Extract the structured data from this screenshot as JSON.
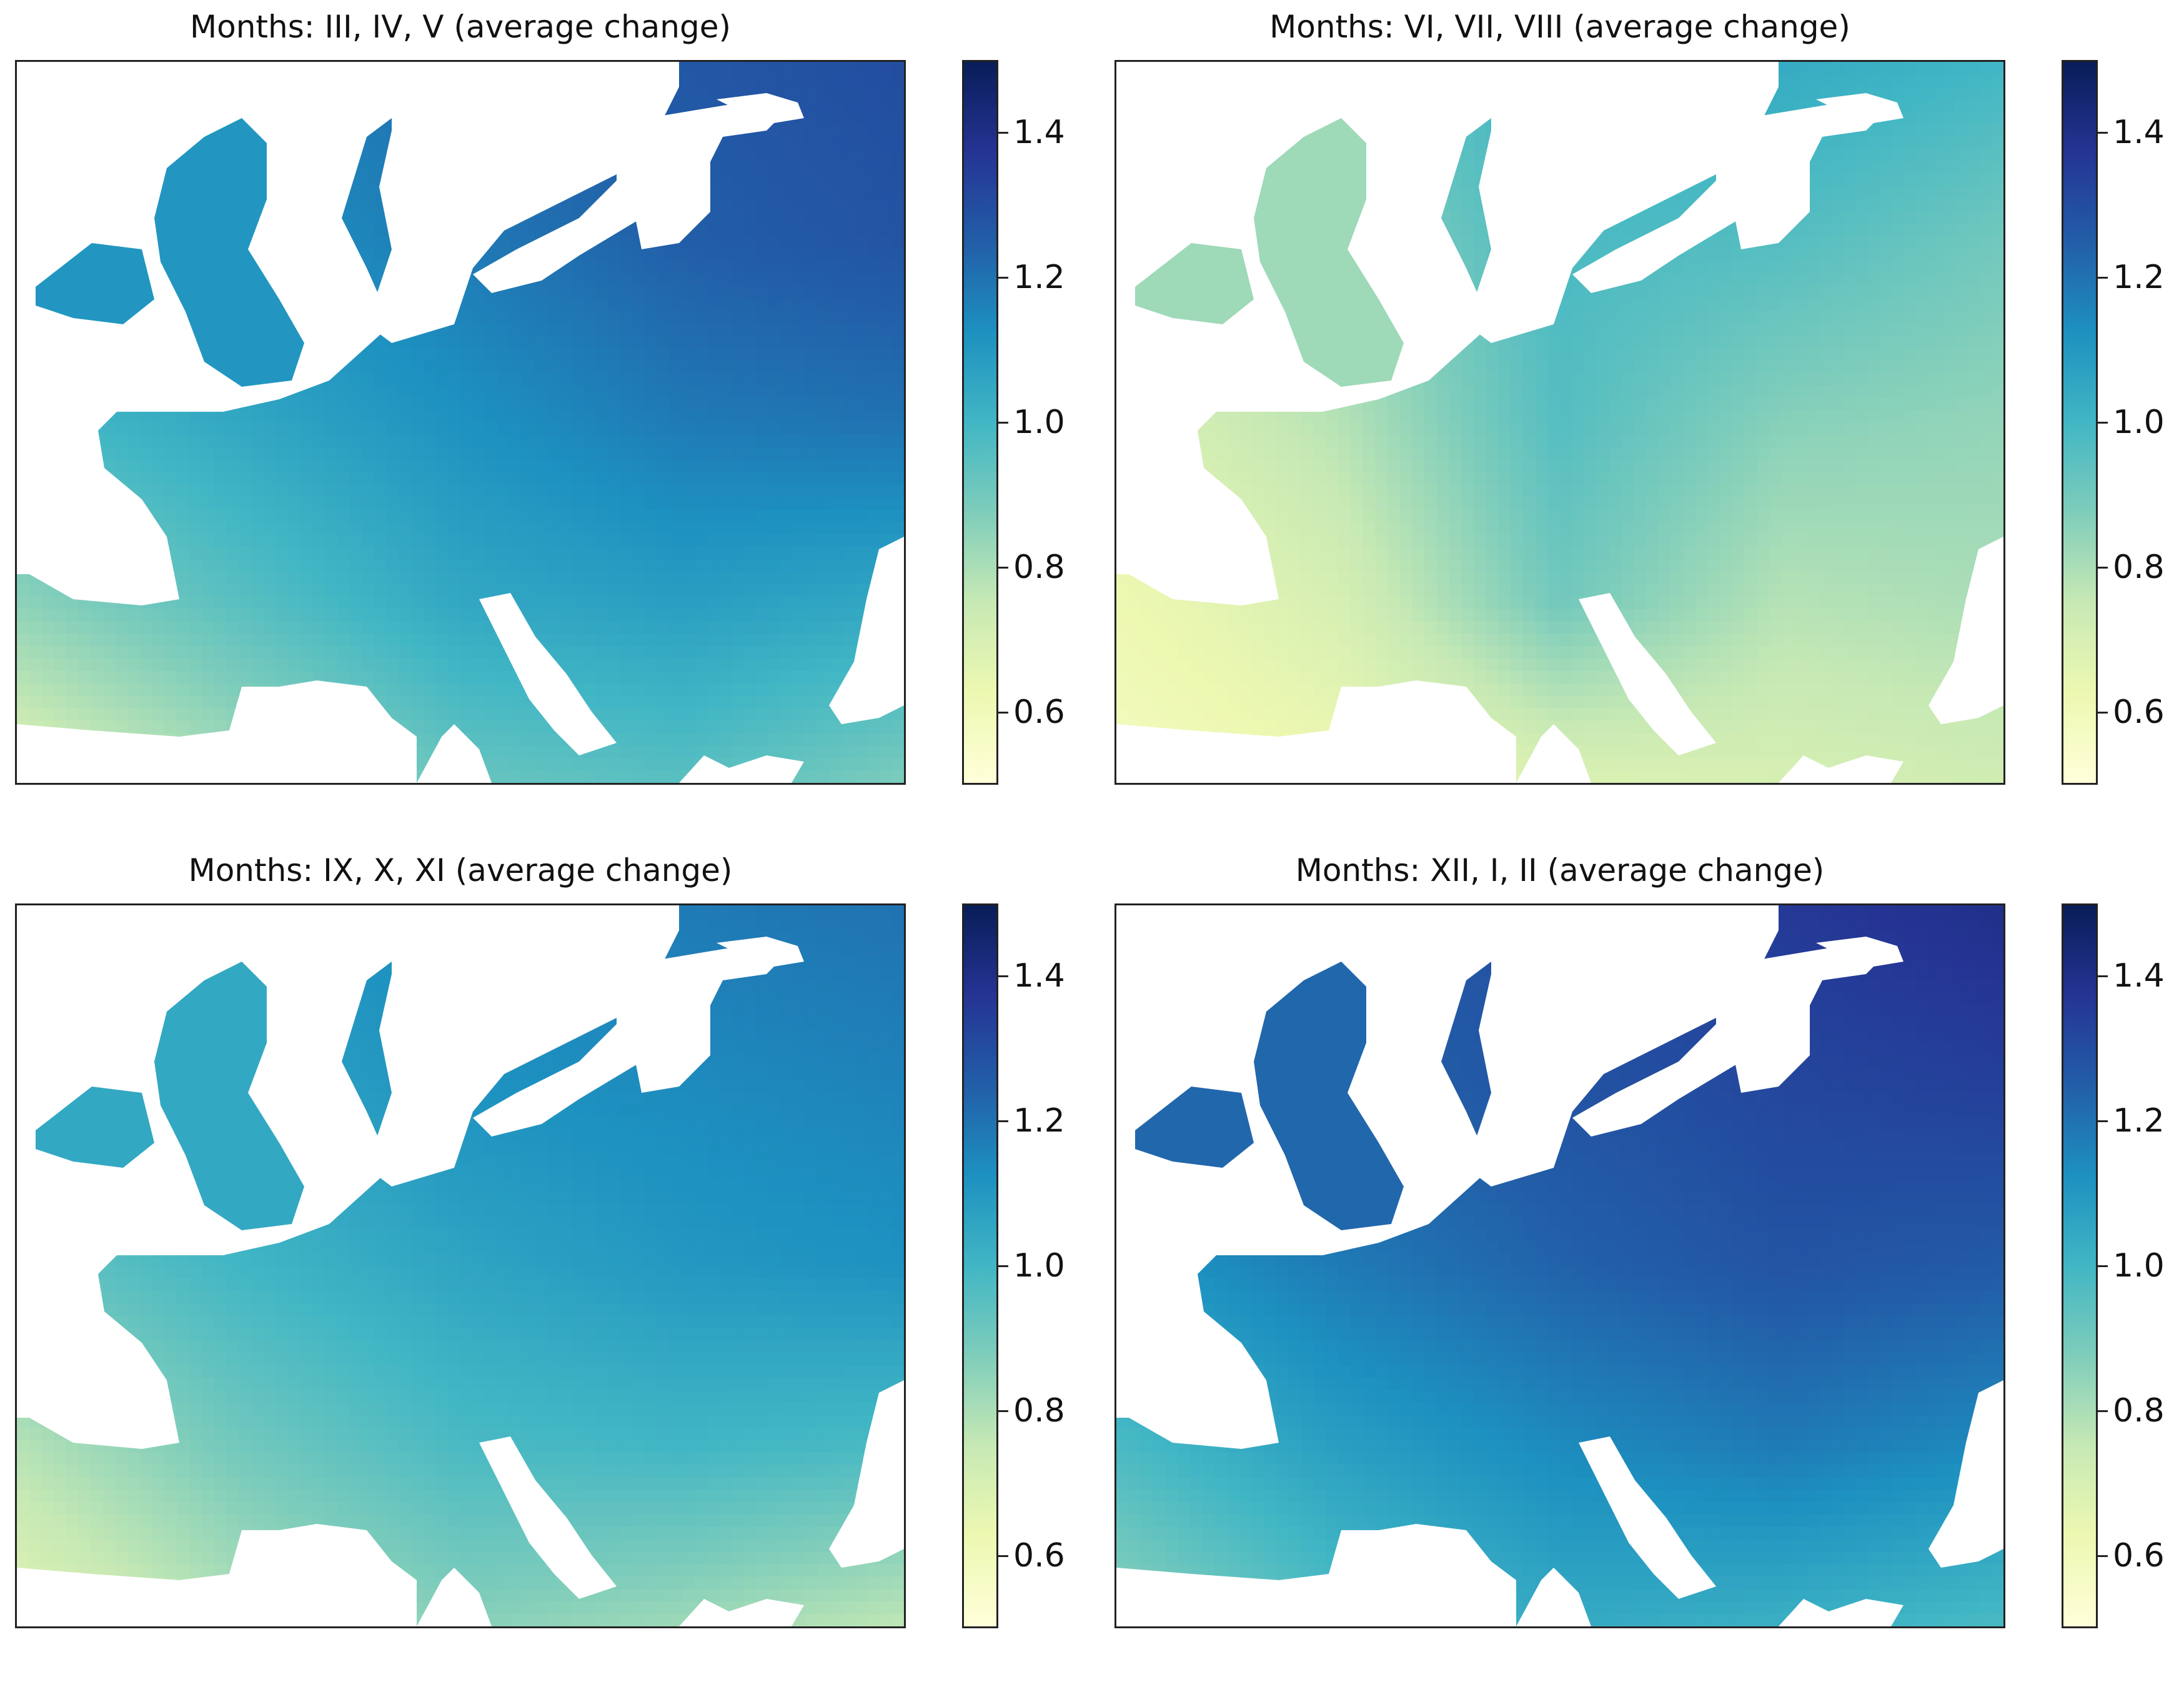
{
  "chart_data": [
    {
      "type": "heatmap",
      "title": "Months: III, IV, V (average change)",
      "colormap": "YlGnBu",
      "colorbar": {
        "range": [
          0.5,
          1.5
        ],
        "ticks": [
          0.6,
          0.8,
          1.0,
          1.2,
          1.4
        ],
        "tick_labels": [
          "0.6",
          "0.8",
          "1.0",
          "1.2",
          "1.4"
        ]
      },
      "value_range_shown": [
        0.62,
        1.32
      ],
      "masked_areas": "sea/outside-domain shown white",
      "grid_coarse": {
        "rows": [
          "north",
          "upper-middle",
          "middle",
          "lower-middle",
          "south"
        ],
        "cols": [
          "west",
          "west-center",
          "center",
          "east-center",
          "east"
        ],
        "values": [
          [
            1.12,
            1.15,
            1.22,
            1.27,
            1.3
          ],
          [
            1.08,
            1.12,
            1.18,
            1.25,
            1.28
          ],
          [
            0.98,
            1.05,
            1.12,
            1.18,
            1.2
          ],
          [
            0.85,
            0.95,
            1.05,
            1.08,
            1.05
          ],
          [
            0.68,
            0.8,
            0.92,
            0.95,
            0.88
          ]
        ]
      }
    },
    {
      "type": "heatmap",
      "title": "Months: VI, VII, VIII (average change)",
      "colormap": "YlGnBu",
      "colorbar": {
        "range": [
          0.5,
          1.5
        ],
        "ticks": [
          0.6,
          0.8,
          1.0,
          1.2,
          1.4
        ],
        "tick_labels": [
          "0.6",
          "0.8",
          "1.0",
          "1.2",
          "1.4"
        ]
      },
      "value_range_shown": [
        0.55,
        1.08
      ],
      "masked_areas": "sea/outside-domain shown white",
      "grid_coarse": {
        "rows": [
          "north",
          "upper-middle",
          "middle",
          "lower-middle",
          "south"
        ],
        "cols": [
          "west",
          "west-center",
          "center",
          "east-center",
          "east"
        ],
        "values": [
          [
            0.82,
            0.92,
            1.02,
            1.04,
            1.0
          ],
          [
            0.75,
            0.85,
            0.98,
            0.96,
            0.9
          ],
          [
            0.68,
            0.78,
            0.96,
            0.86,
            0.84
          ],
          [
            0.62,
            0.7,
            0.9,
            0.78,
            0.8
          ],
          [
            0.58,
            0.62,
            0.68,
            0.7,
            0.72
          ]
        ]
      }
    },
    {
      "type": "heatmap",
      "title": "Months: IX, X, XI (average change)",
      "colormap": "YlGnBu",
      "colorbar": {
        "range": [
          0.5,
          1.5
        ],
        "ticks": [
          0.6,
          0.8,
          1.0,
          1.2,
          1.4
        ],
        "tick_labels": [
          "0.6",
          "0.8",
          "1.0",
          "1.2",
          "1.4"
        ]
      },
      "value_range_shown": [
        0.62,
        1.22
      ],
      "masked_areas": "sea/outside-domain shown white",
      "grid_coarse": {
        "rows": [
          "north",
          "upper-middle",
          "middle",
          "lower-middle",
          "south"
        ],
        "cols": [
          "west",
          "west-center",
          "center",
          "east-center",
          "east"
        ],
        "values": [
          [
            1.08,
            1.1,
            1.15,
            1.18,
            1.2
          ],
          [
            1.02,
            1.06,
            1.12,
            1.14,
            1.16
          ],
          [
            0.92,
            1.0,
            1.06,
            1.1,
            1.12
          ],
          [
            0.78,
            0.9,
            0.98,
            1.0,
            0.98
          ],
          [
            0.66,
            0.78,
            0.86,
            0.82,
            0.76
          ]
        ]
      }
    },
    {
      "type": "heatmap",
      "title": "Months: XII, I, II (average change)",
      "colormap": "YlGnBu",
      "colorbar": {
        "range": [
          0.5,
          1.5
        ],
        "ticks": [
          0.6,
          0.8,
          1.0,
          1.2,
          1.4
        ],
        "tick_labels": [
          "0.6",
          "0.8",
          "1.0",
          "1.2",
          "1.4"
        ]
      },
      "value_range_shown": [
        0.78,
        1.4
      ],
      "masked_areas": "sea/outside-domain shown white",
      "grid_coarse": {
        "rows": [
          "north",
          "upper-middle",
          "middle",
          "lower-middle",
          "south"
        ],
        "cols": [
          "west",
          "west-center",
          "center",
          "east-center",
          "east"
        ],
        "values": [
          [
            1.22,
            1.25,
            1.3,
            1.36,
            1.4
          ],
          [
            1.2,
            1.24,
            1.28,
            1.32,
            1.34
          ],
          [
            1.1,
            1.18,
            1.24,
            1.28,
            1.26
          ],
          [
            0.98,
            1.08,
            1.14,
            1.18,
            1.14
          ],
          [
            0.84,
            0.96,
            1.04,
            1.02,
            0.98
          ]
        ]
      }
    }
  ]
}
